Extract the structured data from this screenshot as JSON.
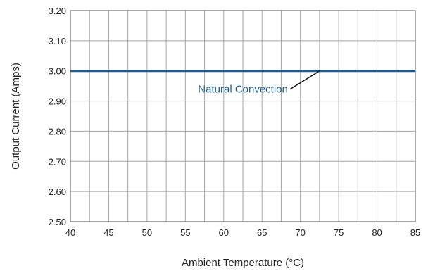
{
  "chart_data": {
    "type": "line",
    "xlabel": "Ambient Temperature (°C)",
    "ylabel": "Output Current (Amps)",
    "xlim": [
      40,
      85
    ],
    "ylim": [
      2.5,
      3.2
    ],
    "x_ticks": [
      "40",
      "45",
      "50",
      "55",
      "60",
      "65",
      "70",
      "75",
      "80",
      "85"
    ],
    "y_ticks": [
      "2.50",
      "2.60",
      "2.70",
      "2.80",
      "2.90",
      "3.00",
      "3.10",
      "3.20"
    ],
    "x_minor_step": 2.5,
    "grid": true,
    "series": [
      {
        "name": "Natural Convection",
        "color": "#1f5a8c",
        "x": [
          40,
          85
        ],
        "y": [
          3.0,
          3.0
        ]
      }
    ],
    "annotations": [
      {
        "text": "Natural Convection",
        "target_x": 72.5,
        "target_y": 3.0,
        "color": "#1f5a8c"
      }
    ]
  }
}
